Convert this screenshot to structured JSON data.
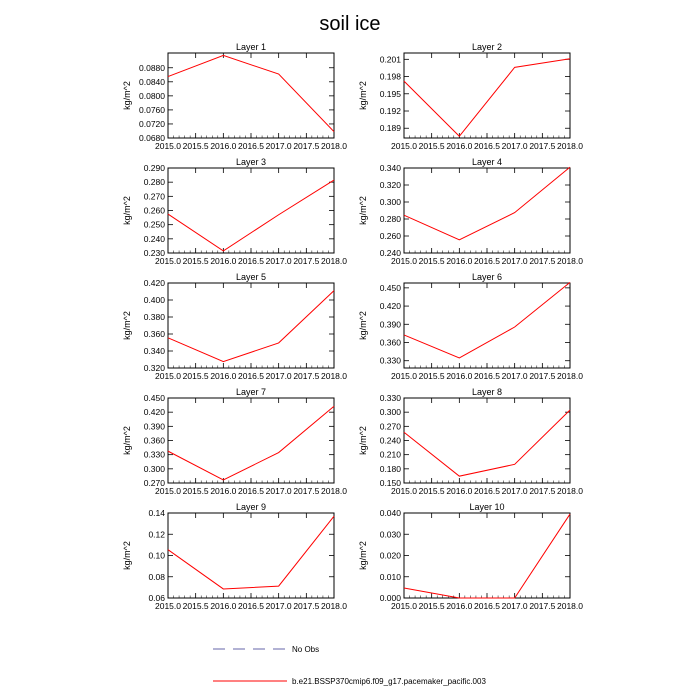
{
  "title": "soil ice",
  "colors": {
    "series": "#ff0000",
    "obs": "#6666aa",
    "frame": "#000000"
  },
  "legend": [
    {
      "label": "No Obs",
      "style": "dashed",
      "color": "#6666aa"
    },
    {
      "label": "b.e21.BSSP370cmip6.f09_g17.pacemaker_pacific.003",
      "style": "solid",
      "color": "#ff0000"
    }
  ],
  "chart_data": [
    {
      "type": "line",
      "title": "Layer 1",
      "ylabel": "kg/m^2",
      "x": [
        2015,
        2016,
        2017,
        2018
      ],
      "xlim": [
        2015,
        2018
      ],
      "xticks": [
        "2015.0",
        "2015.5",
        "2016.0",
        "2016.5",
        "2017.0",
        "2017.5",
        "2018.0"
      ],
      "ylim": [
        0.068,
        0.0922
      ],
      "yticks": [
        "0.0680",
        "0.0720",
        "0.0760",
        "0.0800",
        "0.0840",
        "0.0880"
      ],
      "series": [
        {
          "values": [
            0.0855,
            0.0915,
            0.0862,
            0.0698
          ]
        }
      ]
    },
    {
      "type": "line",
      "title": "Layer 2",
      "ylabel": "kg/m^2",
      "x": [
        2015,
        2016,
        2017,
        2018
      ],
      "xlim": [
        2015,
        2018
      ],
      "xticks": [
        "2015.0",
        "2015.5",
        "2016.0",
        "2016.5",
        "2017.0",
        "2017.5",
        "2018.0"
      ],
      "ylim": [
        0.1873,
        0.2021
      ],
      "yticks": [
        "0.189",
        "0.192",
        "0.195",
        "0.198",
        "0.201"
      ],
      "series": [
        {
          "values": [
            0.1972,
            0.1876,
            0.1996,
            0.2011
          ]
        }
      ]
    },
    {
      "type": "line",
      "title": "Layer 3",
      "ylabel": "kg/m^2",
      "x": [
        2015,
        2016,
        2017,
        2018
      ],
      "xlim": [
        2015,
        2018
      ],
      "xticks": [
        "2015.0",
        "2015.5",
        "2016.0",
        "2016.5",
        "2017.0",
        "2017.5",
        "2018.0"
      ],
      "ylim": [
        0.23,
        0.29
      ],
      "yticks": [
        "0.230",
        "0.240",
        "0.250",
        "0.260",
        "0.270",
        "0.280",
        "0.290"
      ],
      "series": [
        {
          "values": [
            0.2575,
            0.2315,
            0.257,
            0.2815
          ]
        }
      ]
    },
    {
      "type": "line",
      "title": "Layer 4",
      "ylabel": "kg/m^2",
      "x": [
        2015,
        2016,
        2017,
        2018
      ],
      "xlim": [
        2015,
        2018
      ],
      "xticks": [
        "2015.0",
        "2015.5",
        "2016.0",
        "2016.5",
        "2017.0",
        "2017.5",
        "2018.0"
      ],
      "ylim": [
        0.24,
        0.34
      ],
      "yticks": [
        "0.240",
        "0.260",
        "0.280",
        "0.300",
        "0.320",
        "0.340"
      ],
      "series": [
        {
          "values": [
            0.2845,
            0.2555,
            0.2875,
            0.341
          ]
        }
      ]
    },
    {
      "type": "line",
      "title": "Layer 5",
      "ylabel": "kg/m^2",
      "x": [
        2015,
        2016,
        2017,
        2018
      ],
      "xlim": [
        2015,
        2018
      ],
      "xticks": [
        "2015.0",
        "2015.5",
        "2016.0",
        "2016.5",
        "2017.0",
        "2017.5",
        "2018.0"
      ],
      "ylim": [
        0.32,
        0.42
      ],
      "yticks": [
        "0.320",
        "0.340",
        "0.360",
        "0.380",
        "0.400",
        "0.420"
      ],
      "series": [
        {
          "values": [
            0.3555,
            0.3275,
            0.3495,
            0.411
          ]
        }
      ]
    },
    {
      "type": "line",
      "title": "Layer 6",
      "ylabel": "kg/m^2",
      "x": [
        2015,
        2016,
        2017,
        2018
      ],
      "xlim": [
        2015,
        2018
      ],
      "xticks": [
        "2015.0",
        "2015.5",
        "2016.0",
        "2016.5",
        "2017.0",
        "2017.5",
        "2018.0"
      ],
      "ylim": [
        0.318,
        0.458
      ],
      "yticks": [
        "0.330",
        "0.360",
        "0.390",
        "0.420",
        "0.450"
      ],
      "series": [
        {
          "values": [
            0.3725,
            0.3345,
            0.3855,
            0.459
          ]
        }
      ]
    },
    {
      "type": "line",
      "title": "Layer 7",
      "ylabel": "kg/m^2",
      "x": [
        2015,
        2016,
        2017,
        2018
      ],
      "xlim": [
        2015,
        2018
      ],
      "xticks": [
        "2015.0",
        "2015.5",
        "2016.0",
        "2016.5",
        "2017.0",
        "2017.5",
        "2018.0"
      ],
      "ylim": [
        0.27,
        0.45
      ],
      "yticks": [
        "0.270",
        "0.300",
        "0.330",
        "0.360",
        "0.390",
        "0.420",
        "0.450"
      ],
      "series": [
        {
          "values": [
            0.3375,
            0.2765,
            0.3345,
            0.4325
          ]
        }
      ]
    },
    {
      "type": "line",
      "title": "Layer 8",
      "ylabel": "kg/m^2",
      "x": [
        2015,
        2016,
        2017,
        2018
      ],
      "xlim": [
        2015,
        2018
      ],
      "xticks": [
        "2015.0",
        "2015.5",
        "2016.0",
        "2016.5",
        "2017.0",
        "2017.5",
        "2018.0"
      ],
      "ylim": [
        0.15,
        0.33
      ],
      "yticks": [
        "0.150",
        "0.180",
        "0.210",
        "0.240",
        "0.270",
        "0.300",
        "0.330"
      ],
      "series": [
        {
          "values": [
            0.2575,
            0.1645,
            0.1895,
            0.3045
          ]
        }
      ]
    },
    {
      "type": "line",
      "title": "Layer 9",
      "ylabel": "kg/m^2",
      "x": [
        2015,
        2016,
        2017,
        2018
      ],
      "xlim": [
        2015,
        2018
      ],
      "xticks": [
        "2015.0",
        "2015.5",
        "2016.0",
        "2016.5",
        "2017.0",
        "2017.5",
        "2018.0"
      ],
      "ylim": [
        0.06,
        0.14
      ],
      "yticks": [
        "0.06",
        "0.08",
        "0.10",
        "0.12",
        "0.14"
      ],
      "series": [
        {
          "values": [
            0.1055,
            0.0685,
            0.0712,
            0.137
          ]
        }
      ]
    },
    {
      "type": "line",
      "title": "Layer 10",
      "ylabel": "kg/m^2",
      "x": [
        2015,
        2016,
        2017,
        2018
      ],
      "xlim": [
        2015,
        2018
      ],
      "xticks": [
        "2015.0",
        "2015.5",
        "2016.0",
        "2016.5",
        "2017.0",
        "2017.5",
        "2018.0"
      ],
      "ylim": [
        0.0,
        0.04
      ],
      "yticks": [
        "0.000",
        "0.010",
        "0.020",
        "0.030",
        "0.040"
      ],
      "series": [
        {
          "values": [
            0.0047,
            0.0,
            0.0,
            0.0395
          ]
        }
      ]
    }
  ]
}
